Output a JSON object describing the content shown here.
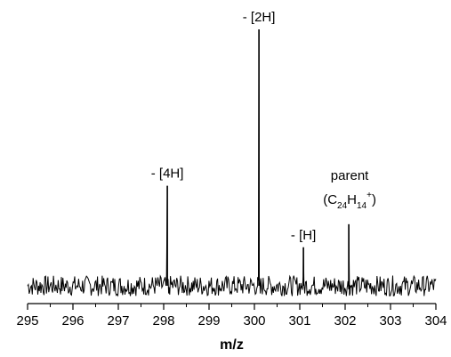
{
  "chart_data": {
    "type": "line",
    "xlabel": "m/z",
    "ylabel": "",
    "xlim": [
      295,
      304
    ],
    "ylim": [
      0,
      1
    ],
    "x_ticks": [
      "295",
      "296",
      "297",
      "298",
      "299",
      "300",
      "301",
      "302",
      "303",
      "304"
    ],
    "y_axis_visible": false,
    "grid": false,
    "legend": "none",
    "noise_level": 0.04,
    "line_color": "#000000",
    "peaks": [
      {
        "x": 298.08,
        "y": 0.39,
        "label": "- [4H]"
      },
      {
        "x": 300.1,
        "y": 1.0,
        "label": "- [2H]"
      },
      {
        "x": 301.08,
        "y": 0.15,
        "label": "- [H]"
      },
      {
        "x": 302.08,
        "y": 0.24,
        "label": "parent",
        "formula": {
          "base": "C",
          "sub1": "24",
          "mid": "H",
          "sub2": "14",
          "sup": "+"
        }
      }
    ]
  }
}
